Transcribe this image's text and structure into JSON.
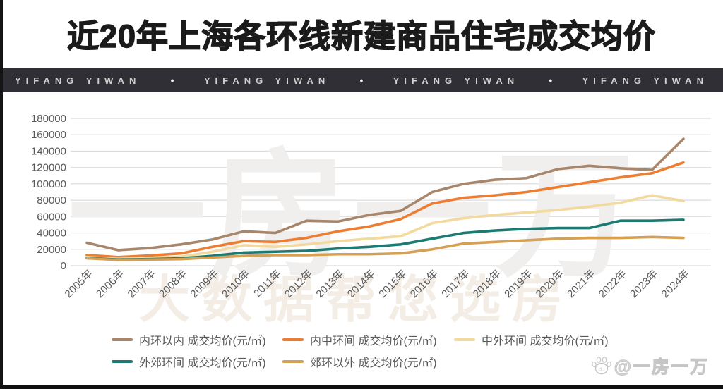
{
  "title": "近20年上海各环线新建商品住宅成交均价",
  "banner": {
    "brand": "YIFANG YIWAN",
    "bullet": "●"
  },
  "watermarks": {
    "plot": "一房一万",
    "axis": "大数据帮您选房",
    "credit": "@一房一万",
    "paw_label": "du"
  },
  "colors": {
    "banner_bg": "#312f36",
    "banner_text": "#cfcfcf",
    "grid": "#dcdcdc",
    "axis_text": "#595959",
    "frame_edge": "#141414"
  },
  "chart_data": {
    "type": "line",
    "title": "近20年上海各环线新建商品住宅成交均价",
    "xlabel": "",
    "ylabel": "",
    "unit": "元/㎡",
    "grid": true,
    "legend_position": "bottom",
    "ylim": [
      0,
      180000
    ],
    "yticks": [
      0,
      20000,
      40000,
      60000,
      80000,
      100000,
      120000,
      140000,
      160000,
      180000
    ],
    "categories": [
      "2005年",
      "2006年",
      "2007年",
      "2008年",
      "2009年",
      "2010年",
      "2011年",
      "2012年",
      "2013年",
      "2014年",
      "2015年",
      "2016年",
      "2017年",
      "2018年",
      "2019年",
      "2020年",
      "2021年",
      "2022年",
      "2023年",
      "2024年"
    ],
    "series": [
      {
        "name": "内环以内 成交均价(元/㎡)",
        "color": "#a8866b",
        "values": [
          28000,
          19000,
          21500,
          26000,
          32000,
          42000,
          40000,
          55000,
          54000,
          62000,
          67000,
          90000,
          100000,
          105000,
          107000,
          118000,
          122000,
          119000,
          117000,
          155000
        ]
      },
      {
        "name": "内中环间 成交均价(元/㎡)",
        "color": "#ed7d31",
        "values": [
          13000,
          10500,
          12500,
          15000,
          23000,
          30000,
          29000,
          34000,
          42000,
          48000,
          57000,
          76000,
          83000,
          86000,
          90000,
          96000,
          102000,
          108000,
          113000,
          126000
        ]
      },
      {
        "name": "中外环间 成交均价(元/㎡)",
        "color": "#f2d99e",
        "values": [
          10500,
          8500,
          9500,
          11000,
          17000,
          25000,
          23000,
          26000,
          30000,
          33000,
          36000,
          52000,
          58000,
          62000,
          65000,
          68000,
          72000,
          77000,
          86000,
          79000
        ]
      },
      {
        "name": "外郊环间 成交均价(元/㎡)",
        "color": "#1b7b73",
        "values": [
          9500,
          7500,
          8000,
          9000,
          12000,
          16000,
          17000,
          18000,
          21000,
          23000,
          26000,
          33000,
          40000,
          43000,
          45000,
          46000,
          46000,
          55000,
          55000,
          56000
        ]
      },
      {
        "name": "郊环以外 成交均价(元/㎡)",
        "color": "#d6a054",
        "values": [
          9000,
          7000,
          7500,
          8000,
          10000,
          12000,
          13000,
          13000,
          14000,
          14000,
          15000,
          20000,
          27000,
          29000,
          31000,
          33000,
          34000,
          34000,
          35000,
          34000
        ]
      }
    ]
  }
}
